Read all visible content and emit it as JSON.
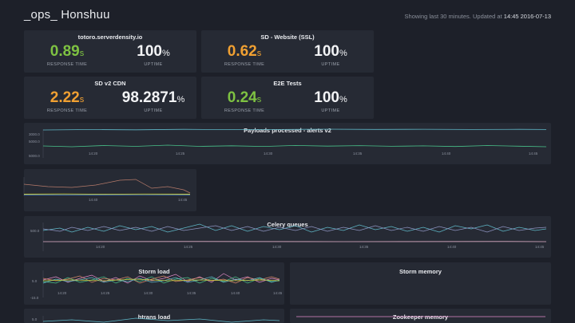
{
  "header": {
    "title": "_ops_ Honshuu",
    "status_prefix": "Showing last 30 minutes. Updated at",
    "status_time": "14:45 2016-07-13"
  },
  "stat_panels": [
    {
      "title": "totoro.serverdensity.io",
      "response_value": "0.89",
      "response_unit": "s",
      "response_color": "#7ec242",
      "response_label": "RESPONSE TIME",
      "uptime_value": "100",
      "uptime_unit": "%",
      "uptime_label": "UPTIME"
    },
    {
      "title": "SD - Website (SSL)",
      "response_value": "0.62",
      "response_unit": "s",
      "response_color": "#f0a032",
      "response_label": "RESPONSE TIME",
      "uptime_value": "100",
      "uptime_unit": "%",
      "uptime_label": "UPTIME"
    },
    {
      "title": "SD v2 CDN",
      "response_value": "2.22",
      "response_unit": "s",
      "response_color": "#f0a032",
      "response_label": "RESPONSE TIME",
      "uptime_value": "98.2871",
      "uptime_unit": "%",
      "uptime_label": "UPTIME"
    },
    {
      "title": "E2E Tests",
      "response_value": "0.24",
      "response_unit": "s",
      "response_color": "#7ec242",
      "response_label": "RESPONSE TIME",
      "uptime_value": "100",
      "uptime_unit": "%",
      "uptime_label": "UPTIME"
    }
  ],
  "graphs": {
    "payloads": {
      "title": "Payloads processed - alerts v2",
      "y_ticks": [
        "3000.0",
        "5000.0",
        "5000.0"
      ],
      "x_ticks": [
        "14:20",
        "14:25",
        "14:30",
        "14:35",
        "14:40",
        "14:45"
      ]
    },
    "small": {
      "title": "",
      "x_ticks": [
        "14:40",
        "14:45"
      ]
    },
    "celery": {
      "title": "Celery queues",
      "y_ticks": [
        "500.0"
      ],
      "x_ticks": [
        "14:20",
        "14:25",
        "14:30",
        "14:35",
        "14:40",
        "14:45"
      ]
    },
    "storm_load": {
      "title": "Storm load",
      "y_ticks": [
        "5.0",
        "-15.0"
      ],
      "x_ticks": [
        "14:20",
        "14:25",
        "14:30",
        "14:35",
        "14:40",
        "14:45"
      ]
    },
    "storm_memory": {
      "title": "Storm memory"
    },
    "htrans_load": {
      "title": "htrans load",
      "y_ticks": [
        "5.0"
      ]
    },
    "zookeeper_memory": {
      "title": "Zookeeper memory"
    }
  },
  "colors": {
    "background": "#1d2029",
    "panel": "#262a34",
    "green": "#7ec242",
    "orange": "#f0a032",
    "series_teal": "#5fb8c8",
    "series_green": "#49c28a",
    "series_pink": "#e08ac8",
    "series_orange": "#d98a6a",
    "series_yellow": "#c8c83a",
    "series_blue": "#4a8ad8"
  }
}
